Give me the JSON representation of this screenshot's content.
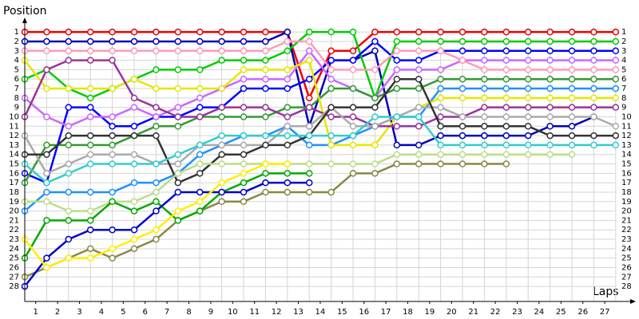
{
  "chart_data": {
    "type": "line",
    "y_label": "Position",
    "x_label": "Laps",
    "xlim": [
      0,
      27.7
    ],
    "ylim": [
      29.6,
      -0.2
    ],
    "grid": true,
    "xticks": [
      {
        "value": 0.5,
        "label": "1"
      },
      {
        "value": 1.5,
        "label": "2"
      },
      {
        "value": 2.5,
        "label": "3"
      },
      {
        "value": 3.5,
        "label": "4"
      },
      {
        "value": 4.5,
        "label": "5"
      },
      {
        "value": 5.5,
        "label": "6"
      },
      {
        "value": 6.5,
        "label": "7"
      },
      {
        "value": 7.5,
        "label": "8"
      },
      {
        "value": 8.5,
        "label": "9"
      },
      {
        "value": 9.5,
        "label": "10"
      },
      {
        "value": 10.5,
        "label": "11"
      },
      {
        "value": 11.5,
        "label": "12"
      },
      {
        "value": 12.5,
        "label": "13"
      },
      {
        "value": 13.5,
        "label": "14"
      },
      {
        "value": 14.5,
        "label": "15"
      },
      {
        "value": 15.5,
        "label": "16"
      },
      {
        "value": 16.5,
        "label": "17"
      },
      {
        "value": 17.5,
        "label": "18"
      },
      {
        "value": 18.5,
        "label": "19"
      },
      {
        "value": 19.5,
        "label": "20"
      },
      {
        "value": 20.5,
        "label": "21"
      },
      {
        "value": 21.5,
        "label": "22"
      },
      {
        "value": 22.5,
        "label": "23"
      },
      {
        "value": 23.5,
        "label": "24"
      },
      {
        "value": 24.5,
        "label": "25"
      },
      {
        "value": 25.5,
        "label": "26"
      },
      {
        "value": 26.5,
        "label": "27"
      }
    ],
    "yticks": [
      1,
      2,
      3,
      4,
      5,
      6,
      7,
      8,
      9,
      10,
      11,
      12,
      13,
      14,
      15,
      16,
      17,
      18,
      19,
      20,
      21,
      22,
      23,
      24,
      25,
      26,
      27,
      28
    ],
    "series": [
      {
        "color": "#ee0000",
        "values": [
          1,
          1,
          1,
          1,
          1,
          1,
          1,
          1,
          1,
          1,
          1,
          1,
          1,
          8,
          3,
          3,
          1,
          1,
          1,
          1,
          1,
          1,
          1,
          1,
          1,
          1,
          1,
          1
        ]
      },
      {
        "color": "#0000bb",
        "values": [
          2,
          2,
          2,
          2,
          2,
          2,
          2,
          2,
          2,
          2,
          2,
          2,
          1,
          11,
          4,
          4,
          3,
          13,
          13,
          12,
          12,
          12,
          12,
          12,
          11,
          11,
          10,
          null
        ]
      },
      {
        "color": "#00cc00",
        "values": [
          6,
          5,
          7,
          8,
          7,
          6,
          5,
          5,
          5,
          4,
          4,
          4,
          3,
          1,
          1,
          1,
          8,
          2,
          2,
          2,
          2,
          2,
          2,
          2,
          2,
          2,
          2,
          2
        ]
      },
      {
        "color": "#0000ff",
        "values": [
          16,
          17,
          9,
          9,
          11,
          11,
          10,
          10,
          9,
          9,
          7,
          7,
          7,
          6,
          4,
          4,
          2,
          4,
          4,
          3,
          3,
          3,
          3,
          3,
          3,
          3,
          3,
          3
        ]
      },
      {
        "color": "#cc66ff",
        "values": [
          8,
          10,
          11,
          10,
          10,
          9,
          10,
          9,
          8,
          7,
          6,
          6,
          6,
          3,
          6,
          7,
          8,
          5,
          5,
          5,
          4,
          4,
          4,
          4,
          4,
          4,
          4,
          4
        ]
      },
      {
        "color": "#ff99bb",
        "values": [
          3,
          3,
          3,
          3,
          3,
          3,
          3,
          3,
          3,
          3,
          3,
          3,
          2,
          2,
          5,
          5,
          5,
          3,
          3,
          3,
          4,
          5,
          5,
          5,
          5,
          5,
          5,
          5
        ]
      },
      {
        "color": "#339933",
        "values": [
          17,
          13,
          13,
          13,
          13,
          12,
          11,
          11,
          10,
          10,
          10,
          10,
          9,
          9,
          7,
          7,
          8,
          7,
          7,
          6,
          6,
          6,
          6,
          6,
          6,
          6,
          6,
          6
        ]
      },
      {
        "color": "#1e90ff",
        "values": [
          20,
          18,
          18,
          18,
          18,
          17,
          17,
          16,
          14,
          13,
          12,
          12,
          11,
          13,
          13,
          12,
          11,
          10,
          10,
          7,
          7,
          7,
          7,
          7,
          7,
          7,
          7,
          7
        ]
      },
      {
        "color": "#e6e600",
        "values": [
          4,
          7,
          7,
          7,
          7,
          6,
          7,
          7,
          7,
          7,
          5,
          5,
          5,
          4,
          13,
          13,
          13,
          10,
          9,
          8,
          8,
          8,
          8,
          8,
          8,
          8,
          8,
          8
        ]
      },
      {
        "color": "#993399",
        "values": [
          10,
          5,
          4,
          4,
          4,
          8,
          9,
          10,
          10,
          9,
          9,
          9,
          10,
          9,
          10,
          10,
          11,
          11,
          11,
          10,
          10,
          9,
          9,
          9,
          9,
          9,
          9,
          9
        ]
      },
      {
        "color": "#aaaaaa",
        "values": [
          12,
          16,
          15,
          14,
          14,
          14,
          15,
          15,
          13,
          13,
          13,
          13,
          11,
          11,
          9,
          11,
          11,
          10,
          9,
          9,
          10,
          10,
          10,
          10,
          10,
          10,
          10,
          11
        ]
      },
      {
        "color": "#333333",
        "values": [
          14,
          14,
          12,
          12,
          12,
          12,
          12,
          17,
          16,
          14,
          14,
          13,
          13,
          12,
          9,
          9,
          9,
          6,
          6,
          11,
          11,
          11,
          11,
          11,
          12,
          12,
          12,
          12
        ]
      },
      {
        "color": "#33cccc",
        "values": [
          15,
          17,
          16,
          15,
          15,
          15,
          15,
          14,
          13,
          12,
          12,
          12,
          12,
          12,
          12,
          12,
          10,
          10,
          10,
          13,
          13,
          13,
          13,
          13,
          13,
          13,
          13,
          13
        ]
      },
      {
        "color": "#bbdd88",
        "values": [
          19,
          19,
          20,
          20,
          19,
          19,
          18,
          16,
          15,
          15,
          15,
          15,
          15,
          15,
          15,
          15,
          15,
          14,
          14,
          14,
          14,
          14,
          14,
          14,
          14,
          14,
          null,
          null
        ]
      },
      {
        "color": "#888844",
        "values": [
          27,
          26,
          25,
          24,
          25,
          24,
          23,
          21,
          20,
          19,
          19,
          18,
          18,
          18,
          18,
          16,
          16,
          15,
          15,
          15,
          15,
          15,
          15,
          null,
          null,
          null,
          null,
          null
        ]
      },
      {
        "color": "#00aa00",
        "values": [
          25,
          21,
          21,
          21,
          19,
          20,
          19,
          21,
          20,
          18,
          17,
          16,
          16,
          16,
          null,
          null,
          null,
          null,
          null,
          null,
          null,
          null,
          null,
          null,
          null,
          null,
          null,
          null
        ]
      },
      {
        "color": "#0000cc",
        "values": [
          28,
          25,
          23,
          22,
          22,
          22,
          20,
          18,
          18,
          18,
          18,
          17,
          17,
          17,
          null,
          null,
          null,
          null,
          null,
          null,
          null,
          null,
          null,
          null,
          null,
          null,
          null,
          null
        ]
      },
      {
        "color": "#ffee00",
        "values": [
          23,
          26,
          25,
          25,
          24,
          23,
          22,
          20,
          19,
          17,
          16,
          15,
          15,
          null,
          null,
          null,
          null,
          null,
          null,
          null,
          null,
          null,
          null,
          null,
          null,
          null,
          null,
          null
        ]
      }
    ]
  }
}
